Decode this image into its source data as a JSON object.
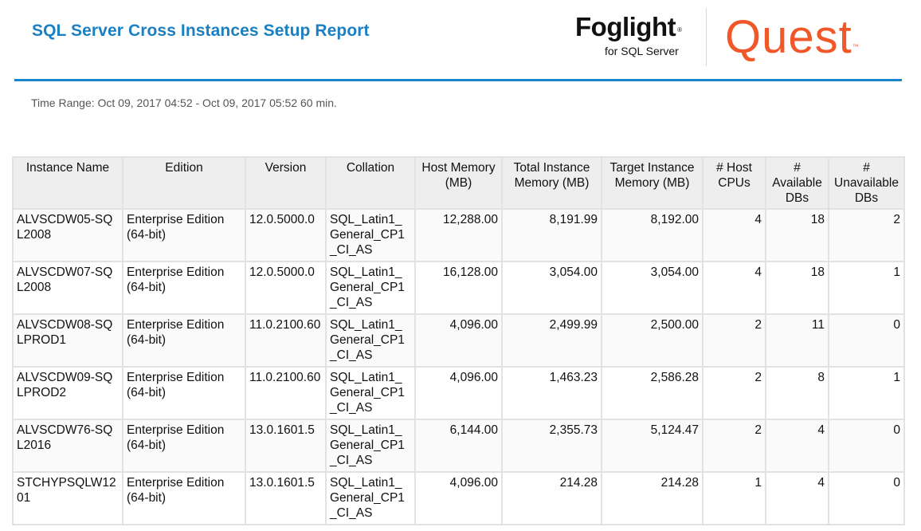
{
  "report": {
    "title": "SQL Server Cross Instances Setup Report",
    "time_range": "Time Range: Oct 09, 2017 04:52 - Oct 09, 2017 05:52 60 min."
  },
  "brand": {
    "foglight": "Foglight",
    "foglight_sub": "for SQL Server",
    "quest": "Quest",
    "accent_blue": "#1b7fc1",
    "quest_orange": "#f0582a"
  },
  "table": {
    "headers": [
      "Instance Name",
      "Edition",
      "Version",
      "Collation",
      "Host Memory (MB)",
      "Total Instance Memory (MB)",
      "Target Instance Memory (MB)",
      "# Host CPUs",
      "# Available DBs",
      "# Unavailable DBs"
    ],
    "rows": [
      [
        "ALVSCDW05-SQL2008",
        "Enterprise Edition (64-bit)",
        "12.0.5000.0",
        "SQL_Latin1_General_CP1_CI_AS",
        "12,288.00",
        "8,191.99",
        "8,192.00",
        "4",
        "18",
        "2"
      ],
      [
        "ALVSCDW07-SQL2008",
        "Enterprise Edition (64-bit)",
        "12.0.5000.0",
        "SQL_Latin1_General_CP1_CI_AS",
        "16,128.00",
        "3,054.00",
        "3,054.00",
        "4",
        "18",
        "1"
      ],
      [
        "ALVSCDW08-SQLPROD1",
        "Enterprise Edition (64-bit)",
        "11.0.2100.60",
        "SQL_Latin1_General_CP1_CI_AS",
        "4,096.00",
        "2,499.99",
        "2,500.00",
        "2",
        "11",
        "0"
      ],
      [
        "ALVSCDW09-SQLPROD2",
        "Enterprise Edition (64-bit)",
        "11.0.2100.60",
        "SQL_Latin1_General_CP1_CI_AS",
        "4,096.00",
        "1,463.23",
        "2,586.28",
        "2",
        "8",
        "1"
      ],
      [
        "ALVSCDW76-SQL2016",
        "Enterprise Edition (64-bit)",
        "13.0.1601.5",
        "SQL_Latin1_General_CP1_CI_AS",
        "6,144.00",
        "2,355.73",
        "5,124.47",
        "2",
        "4",
        "0"
      ],
      [
        "STCHYPSQLW1201",
        "Enterprise Edition (64-bit)",
        "13.0.1601.5",
        "SQL_Latin1_General_CP1_CI_AS",
        "4,096.00",
        "214.28",
        "214.28",
        "1",
        "4",
        "0"
      ]
    ]
  }
}
